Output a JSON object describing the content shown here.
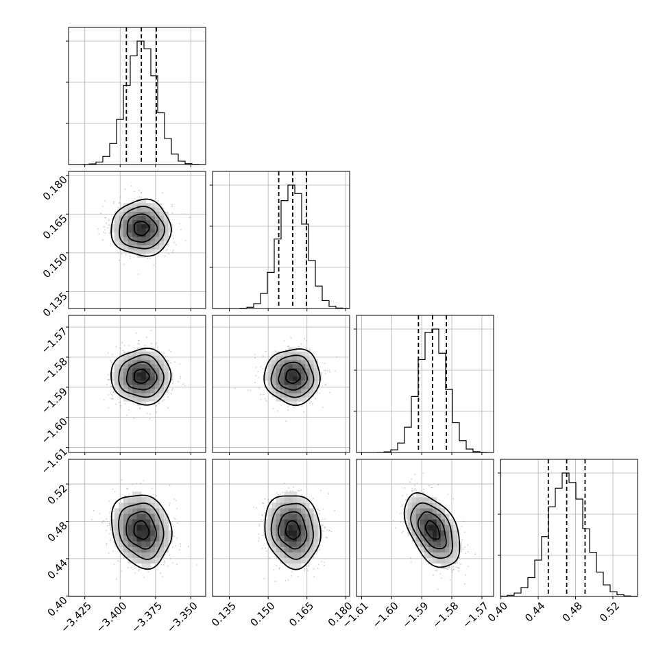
{
  "chart_data": {
    "type": "corner",
    "parameters": [
      {
        "median": -3.385,
        "q16": -3.3956,
        "q84": -3.3744,
        "sigma": 0.0106,
        "range": [
          -3.4365,
          -3.3395
        ],
        "ticks": [
          -3.425,
          -3.4,
          -3.375,
          -3.35
        ],
        "tick_labels": [
          "−3.425",
          "−3.400",
          "−3.375",
          "−3.350"
        ]
      },
      {
        "median": 0.1595,
        "q16": 0.1541,
        "q84": 0.1648,
        "sigma": 0.0054,
        "range": [
          0.1285,
          0.1815
        ],
        "ticks": [
          0.135,
          0.15,
          0.165,
          0.18
        ],
        "tick_labels": [
          "0.135",
          "0.150",
          "0.165",
          "0.180"
        ]
      },
      {
        "median": -1.5864,
        "q16": -1.5911,
        "q84": -1.5818,
        "sigma": 0.0046,
        "range": [
          -1.6117,
          -1.5661
        ],
        "ticks": [
          -1.61,
          -1.6,
          -1.59,
          -1.58,
          -1.57
        ],
        "tick_labels": [
          "−1.61",
          "−1.60",
          "−1.59",
          "−1.58",
          "−1.57"
        ]
      },
      {
        "median": 0.4705,
        "q16": 0.4508,
        "q84": 0.4902,
        "sigma": 0.0197,
        "range": [
          0.3995,
          0.5465
        ],
        "ticks": [
          0.4,
          0.44,
          0.48,
          0.52
        ],
        "tick_labels": [
          "0.40",
          "0.44",
          "0.48",
          "0.52"
        ]
      }
    ],
    "correlations": [
      [
        1.0,
        0.0,
        0.0,
        -0.15
      ],
      [
        0.0,
        1.0,
        0.0,
        -0.1
      ],
      [
        0.0,
        0.0,
        1.0,
        -0.45
      ],
      [
        -0.15,
        -0.1,
        -0.45,
        1.0
      ]
    ],
    "grid": true,
    "xlabel": "",
    "ylabel": "",
    "title": ""
  }
}
